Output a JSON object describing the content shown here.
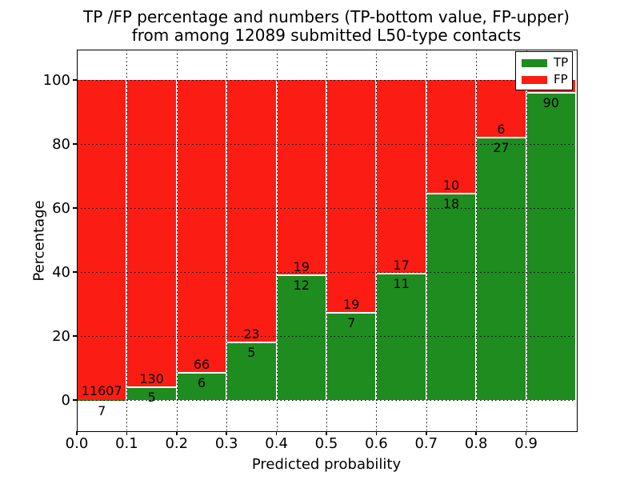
{
  "figure": {
    "background": "#ffffff",
    "frame_color": "#000000"
  },
  "chart_data": {
    "type": "bar",
    "stacked": true,
    "title_line1": "TP /FP percentage and numbers (TP-bottom value, FP-upper)",
    "title_line2": "from among 12089 submitted L50-type contacts",
    "xlabel": "Predicted probability",
    "ylabel": "Percentage",
    "xlim": [
      0.0,
      1.0
    ],
    "ylim": [
      -9.5,
      109.5
    ],
    "x_tick_labels": [
      "0.0",
      "0.1",
      "0.2",
      "0.3",
      "0.4",
      "0.5",
      "0.6",
      "0.7",
      "0.8",
      "0.9"
    ],
    "y_tick_values": [
      0,
      20,
      40,
      60,
      80,
      100
    ],
    "grid": {
      "style": "dotted",
      "color": "#000000",
      "drawn_over_bars": true
    },
    "bar_edge_color": "#ffffff",
    "total_contacts": 12089,
    "legend": {
      "position": "upper-right",
      "entries": [
        {
          "label": "TP",
          "color": "#1f8c1f"
        },
        {
          "label": "FP",
          "color": "#fb1d13"
        }
      ]
    },
    "bins": [
      {
        "x_range": [
          0.0,
          0.1
        ],
        "tp_count": 7,
        "fp_count": 11607,
        "tp_pct": 0.06,
        "tp_label": "7",
        "fp_label": "11607",
        "tp_label_below_axis": true
      },
      {
        "x_range": [
          0.1,
          0.2
        ],
        "tp_count": 5,
        "fp_count": 130,
        "tp_pct": 3.7,
        "tp_label": "5",
        "fp_label": "130"
      },
      {
        "x_range": [
          0.2,
          0.3
        ],
        "tp_count": 6,
        "fp_count": 66,
        "tp_pct": 8.33,
        "tp_label": "6",
        "fp_label": "66"
      },
      {
        "x_range": [
          0.3,
          0.4
        ],
        "tp_count": 5,
        "fp_count": 23,
        "tp_pct": 17.86,
        "tp_label": "5",
        "fp_label": "23"
      },
      {
        "x_range": [
          0.4,
          0.5
        ],
        "tp_count": 12,
        "fp_count": 19,
        "tp_pct": 38.71,
        "tp_label": "12",
        "fp_label": "19"
      },
      {
        "x_range": [
          0.5,
          0.6
        ],
        "tp_count": 7,
        "fp_count": 19,
        "tp_pct": 26.92,
        "tp_label": "7",
        "fp_label": "19"
      },
      {
        "x_range": [
          0.6,
          0.7
        ],
        "tp_count": 11,
        "fp_count": 17,
        "tp_pct": 39.29,
        "tp_label": "11",
        "fp_label": "17"
      },
      {
        "x_range": [
          0.7,
          0.8
        ],
        "tp_count": 18,
        "fp_count": 10,
        "tp_pct": 64.29,
        "tp_label": "18",
        "fp_label": "10"
      },
      {
        "x_range": [
          0.8,
          0.9
        ],
        "tp_count": 27,
        "fp_count": 6,
        "tp_pct": 81.82,
        "tp_label": "27",
        "fp_label": "6"
      },
      {
        "x_range": [
          0.9,
          1.0
        ],
        "tp_count": 90,
        "fp_count": 4,
        "tp_pct": 95.74,
        "tp_label": "90",
        "fp_label": null
      }
    ]
  }
}
